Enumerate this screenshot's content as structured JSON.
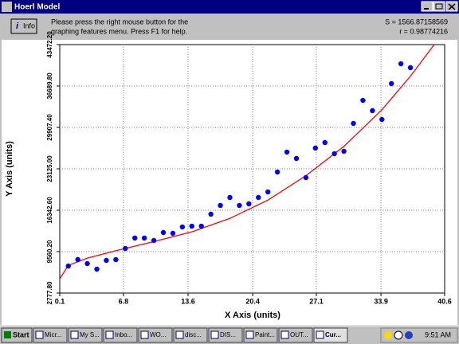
{
  "window": {
    "title": "Hoerl Model"
  },
  "toolbar": {
    "info_button": "Info",
    "help_text": [
      "Please press the right mouse button for the",
      "graphing features menu.  Press F1 for help."
    ],
    "stats": [
      "S = 1566.87158569",
      "r = 0.98774216"
    ]
  },
  "chart_data": {
    "type": "scatter",
    "x_label": "X Axis (units)",
    "y_label": "Y Axis (units)",
    "series": [
      {
        "type": "scatter",
        "color": "#0000ff",
        "x": [
          1,
          2,
          3,
          4,
          5,
          6,
          7,
          8,
          9,
          10,
          11,
          12,
          13,
          14,
          15,
          16,
          17,
          18,
          19,
          20,
          21,
          22,
          23,
          24,
          25,
          26,
          27,
          28,
          29,
          30,
          31,
          32,
          33,
          34,
          35,
          36,
          37
        ],
        "values": [
          7200,
          8260,
          7600,
          6690,
          8130,
          8260,
          10080,
          11780,
          11780,
          11390,
          12690,
          12560,
          13600,
          13730,
          13730,
          15690,
          17130,
          18430,
          17130,
          17390,
          18430,
          19340,
          22600,
          25860,
          24820,
          21690,
          26520,
          27430,
          25600,
          26000,
          30560,
          34340,
          32650,
          31210,
          37080,
          40340,
          39690
        ]
      },
      {
        "type": "line",
        "color": "#ff0000",
        "x": [
          0.1,
          1,
          3,
          6,
          10,
          14,
          18,
          22,
          26,
          30,
          34,
          37,
          40
        ],
        "values": [
          5100,
          7300,
          8500,
          9700,
          11200,
          12800,
          15000,
          18000,
          22000,
          26800,
          32800,
          38300,
          44500
        ]
      }
    ],
    "xlim": [
      0.1,
      40.6
    ],
    "xticks": [
      0.1,
      6.8,
      13.6,
      20.4,
      27.1,
      33.9,
      40.6
    ],
    "ylim": [
      2777.8,
      43472.2
    ],
    "yticks": [
      {
        "value": 2777.8,
        "label": "2777.80"
      },
      {
        "value": 9560.2,
        "label": "9560.20"
      },
      {
        "value": 16342.6,
        "label": "16342.60"
      },
      {
        "value": 23125,
        "label": "23125.00"
      },
      {
        "value": 29907.4,
        "label": "29907.40"
      },
      {
        "value": 36689.8,
        "label": "36689.80"
      },
      {
        "value": 43472.2,
        "label": "43472.20"
      }
    ],
    "grid": true
  },
  "taskbar": {
    "start": "Start",
    "items": [
      "Micr...",
      "My S...",
      "Inbo...",
      "WO...",
      "disc...",
      "DIS...",
      "Paint...",
      "OUT...",
      "Cur..."
    ],
    "clock": "9:51 AM"
  }
}
